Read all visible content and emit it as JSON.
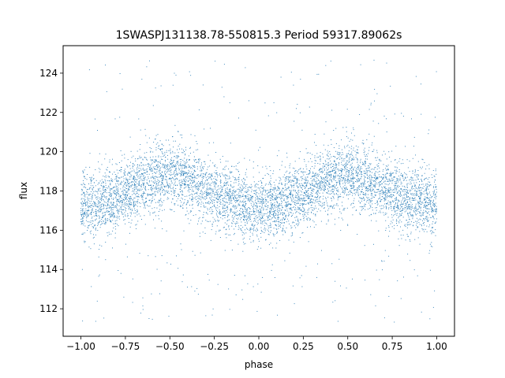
{
  "chart_data": {
    "type": "scatter",
    "title": "1SWASPJ131138.78-550815.3 Period 59317.89062s",
    "xlabel": "phase",
    "ylabel": "flux",
    "xlim": [
      -1.1,
      1.1
    ],
    "ylim": [
      110.6,
      125.4
    ],
    "x_ticks": [
      -1.0,
      -0.75,
      -0.5,
      -0.25,
      0.0,
      0.25,
      0.5,
      0.75,
      1.0
    ],
    "x_tick_labels": [
      "−1.00",
      "−0.75",
      "−0.50",
      "−0.25",
      "0.00",
      "0.25",
      "0.50",
      "0.75",
      "1.00"
    ],
    "y_ticks": [
      112,
      114,
      116,
      118,
      120,
      122,
      124
    ],
    "y_tick_labels": [
      "112",
      "114",
      "116",
      "118",
      "120",
      "122",
      "124"
    ],
    "grid": false,
    "legend": "none",
    "marker_color": "#1f77b4",
    "series": [
      {
        "points": "dense point cloud, phase-folded light curve repeated over two cycles",
        "x_range": [
          -1.0,
          1.0
        ],
        "mean_flux_profile": {
          "phase": [
            -1.0,
            -0.9,
            -0.75,
            -0.6,
            -0.5,
            -0.4,
            -0.25,
            -0.1,
            0.0,
            0.1,
            0.25,
            0.4,
            0.5,
            0.6,
            0.75,
            0.9,
            1.0
          ],
          "flux": [
            117.4,
            117.3,
            117.9,
            118.6,
            118.9,
            118.6,
            117.8,
            117.3,
            117.2,
            117.3,
            117.9,
            118.6,
            118.9,
            118.6,
            117.8,
            117.4,
            117.4
          ]
        },
        "core_spread": 0.85,
        "outlier_range": [
          111.3,
          124.7
        ]
      }
    ]
  }
}
